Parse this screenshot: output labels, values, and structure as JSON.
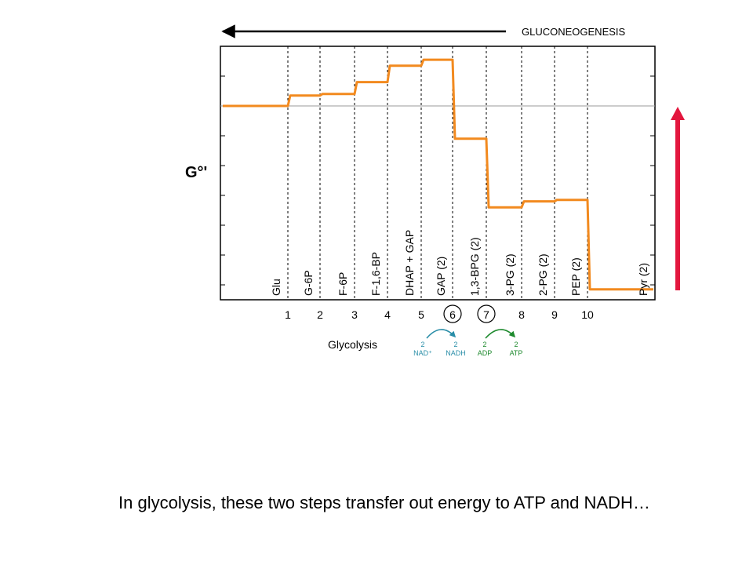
{
  "slide": {
    "caption": "In glycolysis, these two steps transfer out energy to ATP and NADH…",
    "gluconeogenesis_label": "GLUCONEOGENESIS",
    "glycolysis_label": "Glycolysis",
    "colors": {
      "profile": "#f28a1f",
      "up_arrow": "#e3173e",
      "nad_arrow": "#2a8ea8",
      "atp_arrow": "#1e8a2e"
    },
    "cofactors": [
      {
        "coef": "2",
        "name": "NAD⁺",
        "color": "#2a8ea8"
      },
      {
        "coef": "2",
        "name": "NADH",
        "color": "#2a8ea8"
      },
      {
        "coef": "2",
        "name": "ADP",
        "color": "#1e8a2e"
      },
      {
        "coef": "2",
        "name": "ATP",
        "color": "#1e8a2e"
      }
    ]
  },
  "chart_data": {
    "type": "line",
    "ylabel": "G°'",
    "ylim": [
      0,
      8.5
    ],
    "reference_level": 6.5,
    "step_numbers": [
      "1",
      "2",
      "3",
      "4",
      "5",
      "6",
      "7",
      "8",
      "9",
      "10"
    ],
    "circled_steps": [
      "6",
      "7"
    ],
    "intermediates": [
      "Glu",
      "G-6P",
      "F-6P",
      "F-1,6-BP",
      "DHAP + GAP",
      "GAP (2)",
      "1,3-BPG (2)",
      "3-PG (2)",
      "2-PG (2)",
      "PEP (2)",
      "Pyr (2)"
    ],
    "g_levels": [
      6.5,
      6.85,
      6.9,
      7.3,
      7.85,
      8.05,
      5.4,
      3.1,
      3.3,
      3.35,
      0.35
    ],
    "grid": "dashed vertical lines at each step"
  }
}
